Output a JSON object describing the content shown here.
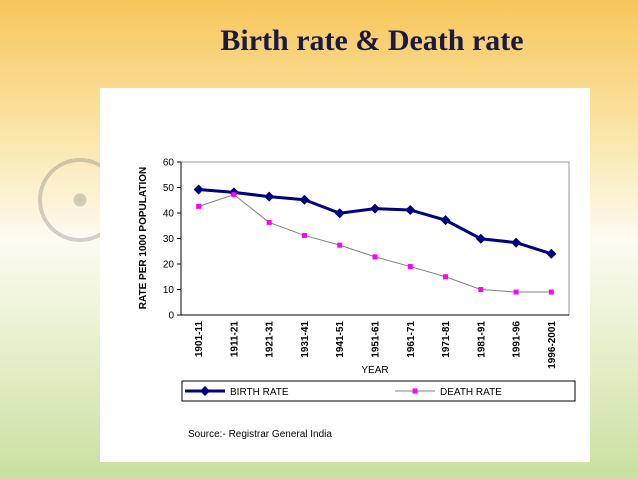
{
  "chart_data": {
    "type": "line",
    "title": "Birth rate & Death rate",
    "x_label": "YEAR",
    "y_label": "RATE PER 1000 POPULATION",
    "source": "Source:- Registrar General India",
    "categories": [
      "1901-11",
      "1911-21",
      "1921-31",
      "1931-41",
      "1941-51",
      "1951-61",
      "1961-71",
      "1971-81",
      "1981-91",
      "1991-96",
      "1996-2001"
    ],
    "series": [
      {
        "name": "BIRTH RATE",
        "color": "#000080",
        "line_color": "#000080",
        "marker": "diamond",
        "values": [
          49.2,
          48.1,
          46.4,
          45.2,
          39.9,
          41.7,
          41.2,
          37.2,
          29.9,
          28.4,
          24.0
        ]
      },
      {
        "name": "DEATH RATE",
        "color": "#ff00ff",
        "line_color": "#808080",
        "marker": "square",
        "values": [
          42.6,
          47.2,
          36.3,
          31.2,
          27.4,
          22.8,
          19.0,
          15.0,
          10.0,
          9.0,
          9.0
        ]
      }
    ],
    "ylim": [
      0,
      60
    ],
    "yticks": [
      0,
      10,
      20,
      30,
      40,
      50,
      60
    ],
    "grid": false,
    "legend": "bottom"
  }
}
